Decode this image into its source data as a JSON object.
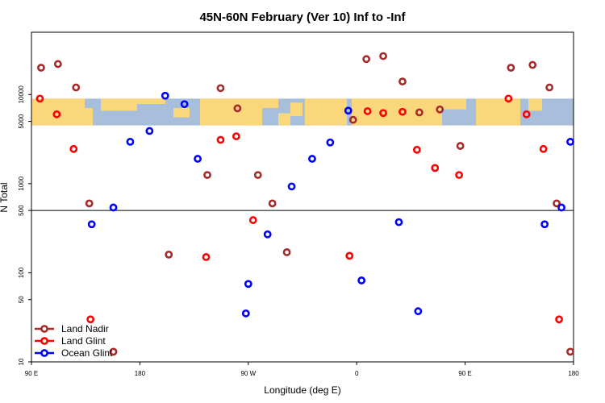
{
  "chart_data": {
    "type": "scatter",
    "title": "45N-60N February (Ver 10)   Inf to -Inf",
    "xlabel": "Longitude (deg E)",
    "ylabel": "N Total",
    "xlim": [
      90,
      540
    ],
    "ylim": [
      10,
      50000
    ],
    "yscale": "log",
    "x_ticks": [
      {
        "value": 90,
        "label": "90 E"
      },
      {
        "value": 180,
        "label": "180"
      },
      {
        "value": 270,
        "label": "90 W"
      },
      {
        "value": 360,
        "label": "0"
      },
      {
        "value": 450,
        "label": "90 E"
      },
      {
        "value": 540,
        "label": "180"
      }
    ],
    "y_ticks": [
      {
        "value": 10,
        "label": "10"
      },
      {
        "value": 50,
        "label": "50"
      },
      {
        "value": 100,
        "label": "100"
      },
      {
        "value": 500,
        "label": "500"
      },
      {
        "value": 1000,
        "label": "1000"
      },
      {
        "value": 5000,
        "label": "5000"
      },
      {
        "value": 10000,
        "label": "10000"
      }
    ],
    "reference_line": 500,
    "map_strip": {
      "y_range": [
        4500,
        9000
      ],
      "longitude_range": [
        90,
        540
      ]
    },
    "legend_position": "bottom-left",
    "series": [
      {
        "name": "Land Nadir",
        "color": "#a52a2a",
        "points": [
          {
            "x": 98,
            "y": 20000
          },
          {
            "x": 112,
            "y": 22000
          },
          {
            "x": 127,
            "y": 12000
          },
          {
            "x": 138,
            "y": 600
          },
          {
            "x": 158,
            "y": 13
          },
          {
            "x": 204,
            "y": 160
          },
          {
            "x": 236,
            "y": 1250
          },
          {
            "x": 247,
            "y": 11800
          },
          {
            "x": 261,
            "y": 7000
          },
          {
            "x": 278,
            "y": 1250
          },
          {
            "x": 290,
            "y": 600
          },
          {
            "x": 302,
            "y": 170
          },
          {
            "x": 357,
            "y": 5200
          },
          {
            "x": 368,
            "y": 25000
          },
          {
            "x": 382,
            "y": 27000
          },
          {
            "x": 398,
            "y": 14000
          },
          {
            "x": 412,
            "y": 6300
          },
          {
            "x": 429,
            "y": 6800
          },
          {
            "x": 446,
            "y": 2650
          },
          {
            "x": 488,
            "y": 20000
          },
          {
            "x": 506,
            "y": 21500
          },
          {
            "x": 520,
            "y": 12000
          },
          {
            "x": 526,
            "y": 600
          },
          {
            "x": 546,
            "y": 13
          }
        ]
      },
      {
        "name": "Land Glint",
        "color": "#ff0000",
        "points": [
          {
            "x": 97,
            "y": 9000
          },
          {
            "x": 111,
            "y": 6000
          },
          {
            "x": 125,
            "y": 2450
          },
          {
            "x": 139,
            "y": 30
          },
          {
            "x": 235,
            "y": 150
          },
          {
            "x": 247,
            "y": 3100
          },
          {
            "x": 260,
            "y": 3400
          },
          {
            "x": 274,
            "y": 390
          },
          {
            "x": 354,
            "y": 155
          },
          {
            "x": 369,
            "y": 6500
          },
          {
            "x": 382,
            "y": 6200
          },
          {
            "x": 398,
            "y": 6400
          },
          {
            "x": 410,
            "y": 2400
          },
          {
            "x": 425,
            "y": 1500
          },
          {
            "x": 445,
            "y": 1250
          },
          {
            "x": 486,
            "y": 9000
          },
          {
            "x": 501,
            "y": 6000
          },
          {
            "x": 515,
            "y": 2450
          },
          {
            "x": 528,
            "y": 30
          }
        ]
      },
      {
        "name": "Ocean Glint",
        "color": "#0000ff",
        "points": [
          {
            "x": 140,
            "y": 350
          },
          {
            "x": 158,
            "y": 540
          },
          {
            "x": 172,
            "y": 2950
          },
          {
            "x": 188,
            "y": 3900
          },
          {
            "x": 201,
            "y": 9700
          },
          {
            "x": 217,
            "y": 7800
          },
          {
            "x": 228,
            "y": 1900
          },
          {
            "x": 268,
            "y": 35
          },
          {
            "x": 270,
            "y": 75
          },
          {
            "x": 286,
            "y": 270
          },
          {
            "x": 306,
            "y": 930
          },
          {
            "x": 323,
            "y": 1900
          },
          {
            "x": 338,
            "y": 2900
          },
          {
            "x": 353,
            "y": 6600
          },
          {
            "x": 364,
            "y": 82
          },
          {
            "x": 395,
            "y": 370
          },
          {
            "x": 411,
            "y": 37
          },
          {
            "x": 516,
            "y": 350
          },
          {
            "x": 530,
            "y": 540
          },
          {
            "x": 546,
            "y": 2950
          }
        ]
      }
    ]
  }
}
